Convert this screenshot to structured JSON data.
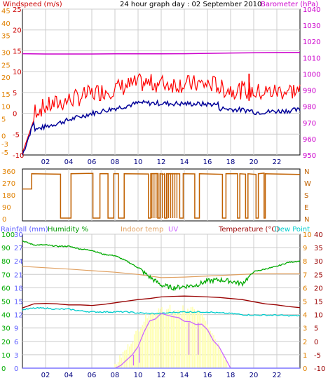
{
  "title": "24 hour graph day : 02 September 2010",
  "colors": {
    "wind": "#ff0000",
    "gust": "#dd0000",
    "avg": "#000099",
    "baro": "#cc00cc",
    "dir": "#c06000",
    "rain": "#8080ff",
    "hum": "#00aa00",
    "indoor": "#e0a060",
    "uv": "#cc66ff",
    "temp": "#990000",
    "dew": "#00cccc",
    "solar": "#ffffb0",
    "grid": "#cccccc",
    "axis": "#000000"
  },
  "chart_data": [
    {
      "type": "line",
      "title": "24 hour graph day : 02 September 2010",
      "x_ticks": [
        "02",
        "04",
        "06",
        "08",
        "10",
        "12",
        "14",
        "16",
        "18",
        "20",
        "22"
      ],
      "left_axis_label": "Windspeed (m/s)",
      "right_axis_label": "Barometer (hPa)",
      "wind_ticks_ms": [
        "25",
        "20",
        "15",
        "10",
        "5",
        "0",
        "-5",
        "-10"
      ],
      "wind_ticks_secondary": [
        "45",
        "40",
        "35",
        "30",
        "25",
        "20",
        "15",
        "10",
        "5",
        "0",
        "-3",
        "-5"
      ],
      "baro_ticks_hpa": [
        "1040",
        "1030",
        "1020",
        "1010",
        "1000",
        "990",
        "980",
        "970",
        "960",
        "950"
      ],
      "ylim_wind": [
        -10,
        25
      ],
      "ylim_baro": [
        950,
        1040
      ],
      "series": [
        {
          "name": "Barometer (hPa)",
          "x": [
            0,
            2,
            4,
            6,
            8,
            10,
            12,
            14,
            16,
            18,
            20,
            22,
            24
          ],
          "values": [
            1012.5,
            1012.3,
            1012.3,
            1012.3,
            1012.4,
            1012.4,
            1012.4,
            1012.5,
            1012.7,
            1012.9,
            1013.1,
            1013.2,
            1013.3
          ]
        }
      ]
    },
    {
      "type": "line",
      "y_ticks_deg": [
        "360",
        "270",
        "180",
        "90",
        "0"
      ],
      "compass": [
        "N",
        "W",
        "S",
        "E",
        "N"
      ],
      "ylim": [
        0,
        360
      ]
    },
    {
      "type": "line",
      "legend": [
        "Rainfall (mm)",
        "Humidity %",
        "Indoor temp",
        "UV",
        "Temperature (°C)",
        "Dew Point"
      ],
      "rain_ticks_mm": [
        "30",
        "27",
        "24",
        "21",
        "18",
        "15",
        "12",
        "9",
        "6",
        "3",
        "0"
      ],
      "hum_ticks_pct": [
        "100",
        "90",
        "80",
        "70",
        "60",
        "50",
        "40",
        "30",
        "20",
        "10",
        "0"
      ],
      "outer_left_ticks": [
        "40",
        "35",
        "30",
        "25",
        "20",
        "15",
        "10",
        "5",
        "0",
        "-5",
        "-10"
      ],
      "uv_ticks": [
        "10",
        "9",
        "8",
        "7",
        "6",
        "5",
        "4",
        "3",
        "2",
        "1",
        "0"
      ],
      "temp_ticks_c": [
        "40",
        "35",
        "30",
        "25",
        "20",
        "15",
        "10",
        "5",
        "0",
        "-5",
        "-10"
      ],
      "x_ticks": [
        "02",
        "04",
        "06",
        "08",
        "10",
        "12",
        "14",
        "16",
        "18",
        "20",
        "22"
      ],
      "series": [
        {
          "name": "Humidity %",
          "x": [
            0,
            1,
            2,
            3,
            4,
            5,
            6,
            7,
            8,
            9,
            10,
            11,
            12,
            13,
            14,
            15,
            16,
            17,
            18,
            19,
            20,
            21,
            22,
            23,
            24
          ],
          "values": [
            95,
            92,
            92,
            91,
            91,
            89,
            88,
            85,
            84,
            80,
            75,
            68,
            62,
            60,
            61,
            62,
            65,
            66,
            65,
            63,
            72,
            74,
            76,
            79,
            80
          ]
        },
        {
          "name": "Temperature (°C)",
          "x": [
            0,
            1,
            2,
            3,
            4,
            5,
            6,
            7,
            8,
            9,
            10,
            11,
            12,
            13,
            14,
            15,
            16,
            17,
            18,
            19,
            20,
            21,
            22,
            23,
            24
          ],
          "values": [
            12.5,
            14.0,
            14.2,
            14.0,
            13.6,
            13.6,
            13.4,
            13.8,
            14.4,
            15.0,
            15.6,
            16.0,
            16.6,
            16.8,
            16.9,
            16.8,
            16.6,
            16.4,
            16.0,
            15.6,
            14.8,
            14.0,
            13.6,
            13.0,
            12.6
          ]
        },
        {
          "name": "Dew Point",
          "x": [
            0,
            1,
            2,
            3,
            4,
            5,
            6,
            7,
            8,
            9,
            10,
            11,
            12,
            13,
            14,
            15,
            16,
            17,
            18,
            19,
            20,
            21,
            22,
            23,
            24
          ],
          "values": [
            11.8,
            12.4,
            12.4,
            12.0,
            12.0,
            11.4,
            11.0,
            11.0,
            11.0,
            11.0,
            10.6,
            10.4,
            10.4,
            10.8,
            11.0,
            11.0,
            11.0,
            10.6,
            10.4,
            10.0,
            9.8,
            9.8,
            9.8,
            9.6,
            9.6
          ]
        },
        {
          "name": "Indoor temp",
          "x": [
            0,
            2,
            4,
            6,
            8,
            10,
            12,
            14,
            16,
            18,
            20,
            22,
            24
          ],
          "values": [
            28.0,
            27.5,
            27.0,
            26.4,
            25.8,
            25.0,
            23.8,
            24.0,
            24.4,
            24.8,
            25.2,
            25.2,
            25.2
          ]
        },
        {
          "name": "UV",
          "x": [
            0,
            8,
            8.5,
            9,
            9.5,
            10,
            10.5,
            11,
            11.5,
            12,
            12.5,
            13,
            13.5,
            14,
            14.5,
            15,
            15.5,
            16,
            16.5,
            17,
            17.5,
            18,
            24
          ],
          "values": [
            0,
            0,
            0.2,
            0.6,
            1.0,
            1.6,
            2.6,
            3.4,
            3.8,
            4.0,
            4.0,
            3.8,
            3.7,
            3.6,
            3.4,
            3.4,
            3.2,
            2.8,
            2.2,
            1.6,
            0.8,
            0,
            0
          ]
        },
        {
          "name": "Rainfall (mm)",
          "x": [
            0,
            24
          ],
          "values": [
            0,
            0
          ]
        }
      ]
    }
  ]
}
